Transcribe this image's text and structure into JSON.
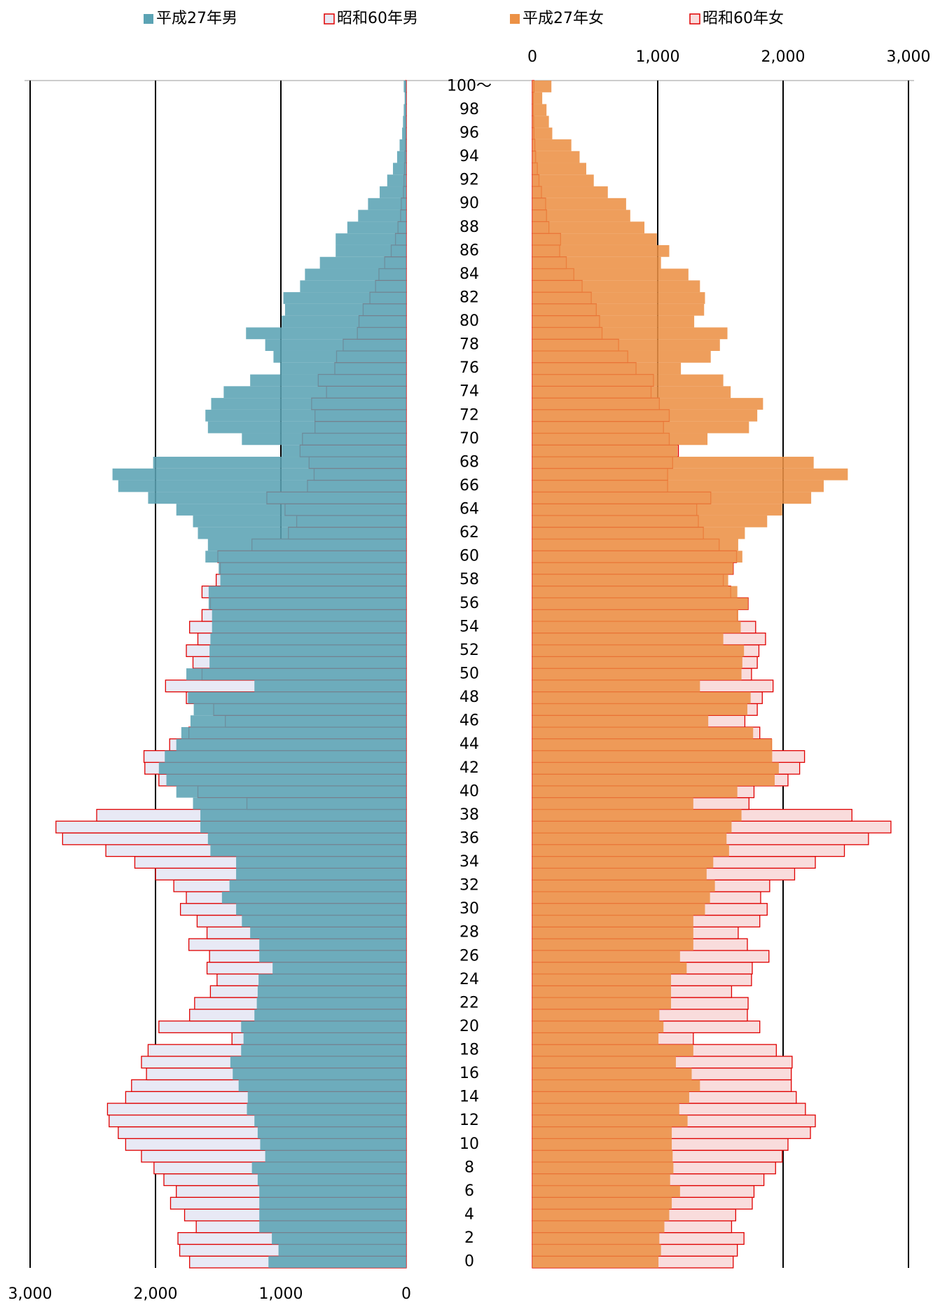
{
  "chart_data": {
    "type": "pyramid",
    "categories": [
      "0",
      null,
      "2",
      null,
      "4",
      null,
      "6",
      null,
      "8",
      null,
      "10",
      null,
      "12",
      null,
      "14",
      null,
      "16",
      null,
      "18",
      null,
      "20",
      null,
      "22",
      null,
      "24",
      null,
      "26",
      null,
      "28",
      null,
      "30",
      null,
      "32",
      null,
      "34",
      null,
      "36",
      null,
      "38",
      null,
      "40",
      null,
      "42",
      null,
      "44",
      null,
      "46",
      null,
      "48",
      null,
      "50",
      null,
      "52",
      null,
      "54",
      null,
      "56",
      null,
      "58",
      null,
      "60",
      null,
      "62",
      null,
      "64",
      null,
      "66",
      null,
      "68",
      null,
      "70",
      null,
      "72",
      null,
      "74",
      null,
      "76",
      null,
      "78",
      null,
      "80",
      null,
      "82",
      null,
      "84",
      null,
      "86",
      null,
      "88",
      null,
      "90",
      null,
      "92",
      null,
      "94",
      null,
      "96",
      null,
      "98",
      null,
      "100～"
    ],
    "xlim": [
      0,
      3000
    ],
    "x_reversed": true,
    "xticks": [
      {
        "value": 3000,
        "label": "3,000"
      },
      {
        "value": 2000,
        "label": "2,000"
      },
      {
        "value": 1000,
        "label": "1,000"
      },
      0
    ],
    "x2lim": [
      0,
      3000
    ],
    "x2ticks": [
      0,
      {
        "value": 1000,
        "label": "1,000"
      },
      {
        "value": 2000,
        "label": "2,000"
      },
      {
        "value": 3000,
        "label": "3,000"
      }
    ],
    "grid": true,
    "series": [
      {
        "name": "平成27年男",
        "color": "#5ba3b4",
        "style": "filled",
        "axis": "x",
        "values": [
          1099,
          1019,
          1072,
          1172,
          1172,
          1172,
          1172,
          1185,
          1231,
          1125,
          1165,
          1185,
          1211,
          1271,
          1264,
          1337,
          1384,
          1403,
          1317,
          1298,
          1317,
          1211,
          1192,
          1185,
          1178,
          1066,
          1172,
          1172,
          1245,
          1311,
          1357,
          1470,
          1410,
          1357,
          1357,
          1562,
          1582,
          1642,
          1642,
          1701,
          1834,
          1913,
          1973,
          1926,
          1834,
          1794,
          1721,
          1695,
          1741,
          1211,
          1754,
          1569,
          1569,
          1562,
          1549,
          1549,
          1576,
          1576,
          1483,
          1496,
          1602,
          1582,
          1662,
          1701,
          1834,
          2059,
          2297,
          2343,
          2019,
          993,
          1311,
          1582,
          1602,
          1556,
          1456,
          1245,
          1006,
          1059,
          1125,
          1278,
          993,
          967,
          980,
          847,
          808,
          689,
          563,
          563,
          470,
          384,
          305,
          212,
          152,
          106,
          73,
          53,
          33,
          26,
          20,
          13,
          20
        ]
      },
      {
        "name": "昭和60年男",
        "color": "#e00000",
        "style": "outline",
        "axis": "x",
        "values": [
          1728,
          1807,
          1821,
          1675,
          1768,
          1880,
          1834,
          1933,
          2012,
          2112,
          2238,
          2297,
          2370,
          2383,
          2238,
          2191,
          2072,
          2112,
          2059,
          1390,
          1973,
          1728,
          1688,
          1562,
          1509,
          1589,
          1569,
          1734,
          1589,
          1668,
          1801,
          1754,
          1854,
          1999,
          2165,
          2396,
          2741,
          2794,
          2469,
          1271,
          1662,
          1973,
          2085,
          2092,
          1887,
          1734,
          1443,
          1536,
          1754,
          1920,
          1629,
          1701,
          1754,
          1662,
          1728,
          1629,
          1562,
          1629,
          1516,
          1483,
          1503,
          1231,
          940,
          874,
          967,
          1112,
          788,
          735,
          775,
          847,
          828,
          728,
          728,
          755,
          636,
          702,
          570,
          556,
          503,
          390,
          377,
          344,
          290,
          245,
          218,
          172,
          120,
          86,
          66,
          45,
          40,
          22,
          18,
          14,
          10,
          7,
          5,
          4,
          3,
          2,
          5
        ]
      },
      {
        "name": "平成27年女",
        "color": "#ec9145",
        "style": "filled",
        "axis": "x2",
        "values": [
          1006,
          1026,
          1013,
          1053,
          1092,
          1112,
          1178,
          1099,
          1125,
          1119,
          1112,
          1112,
          1238,
          1172,
          1251,
          1337,
          1271,
          1145,
          1284,
          1006,
          1046,
          1013,
          1106,
          1106,
          1106,
          1231,
          1178,
          1284,
          1284,
          1284,
          1377,
          1417,
          1456,
          1390,
          1443,
          1569,
          1549,
          1589,
          1668,
          1284,
          1635,
          1933,
          1966,
          1913,
          1913,
          1761,
          1403,
          1715,
          1741,
          1337,
          1668,
          1675,
          1688,
          1523,
          1662,
          1642,
          1721,
          1635,
          1562,
          1602,
          1675,
          1642,
          1695,
          1873,
          1993,
          2224,
          2324,
          2516,
          2244,
          1159,
          1397,
          1728,
          1794,
          1840,
          1582,
          1523,
          1185,
          1423,
          1496,
          1556,
          1291,
          1370,
          1377,
          1337,
          1245,
          1026,
          1092,
          993,
          894,
          781,
          748,
          602,
          490,
          430,
          377,
          311,
          159,
          132,
          113,
          79,
          152
        ]
      },
      {
        "name": "昭和60年女",
        "color": "#e00000",
        "style": "outline",
        "axis": "x2",
        "values": [
          1602,
          1635,
          1688,
          1589,
          1622,
          1754,
          1768,
          1847,
          1940,
          1993,
          2039,
          2218,
          2257,
          2178,
          2105,
          2065,
          2065,
          2072,
          1946,
          1284,
          1814,
          1715,
          1721,
          1589,
          1748,
          1754,
          1887,
          1715,
          1642,
          1814,
          1873,
          1821,
          1893,
          2092,
          2257,
          2489,
          2681,
          2860,
          2549,
          1728,
          1768,
          2039,
          2132,
          2171,
          1907,
          1814,
          1695,
          1794,
          1834,
          1920,
          1748,
          1794,
          1807,
          1860,
          1781,
          1635,
          1721,
          1582,
          1523,
          1602,
          1629,
          1490,
          1364,
          1324,
          1311,
          1423,
          1079,
          1079,
          1119,
          1165,
          1092,
          1046,
          1092,
          1013,
          947,
          966,
          827,
          761,
          688,
          556,
          536,
          510,
          470,
          397,
          331,
          271,
          218,
          225,
          132,
          113,
          106,
          73,
          53,
          40,
          26,
          20,
          13,
          10,
          7,
          7,
          13
        ]
      }
    ]
  }
}
